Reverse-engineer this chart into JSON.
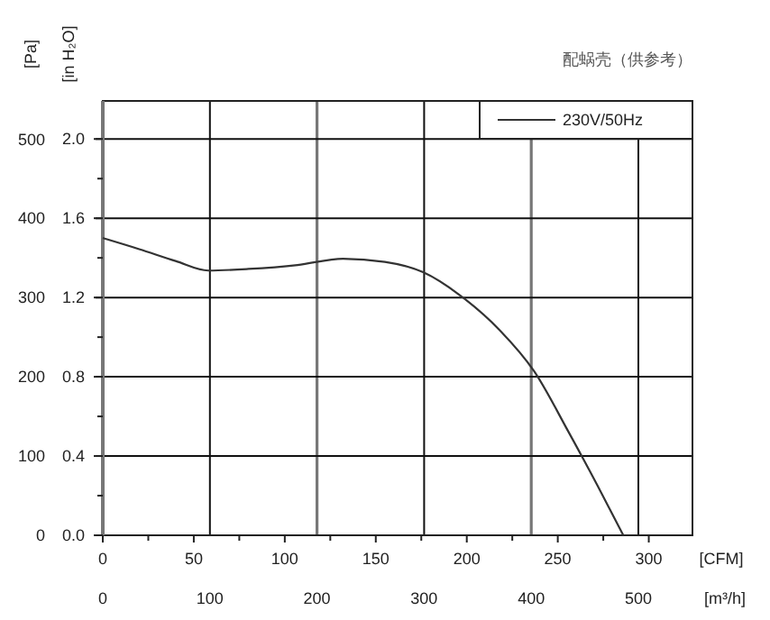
{
  "chart_data": {
    "type": "line",
    "title": "配蜗壳（供参考）",
    "xlabel": "[CFM]",
    "x2label": "[m³/h]",
    "ylabel": "[Pa]",
    "y2label": "[in H₂O]",
    "x": [
      0,
      20,
      40,
      58,
      80,
      107,
      132,
      155,
      176,
      199,
      218,
      237,
      256,
      272,
      286
    ],
    "series": [
      {
        "name": "230V/50Hz",
        "color": "#333333",
        "values": [
          375,
          361,
          346,
          334,
          336,
          341,
          349,
          345,
          332,
          298,
          259,
          207,
          130,
          62,
          0
        ]
      }
    ],
    "xlim": [
      0,
      324
    ],
    "xticks": [
      0,
      {
        "value": 25,
        "label": null
      },
      50,
      {
        "value": 75,
        "label": null
      },
      100,
      {
        "value": 125,
        "label": null
      },
      150,
      {
        "value": 175,
        "label": null
      },
      200,
      {
        "value": 225,
        "label": null
      },
      250,
      {
        "value": 275,
        "label": null
      },
      300
    ],
    "x2lim": [
      0,
      550.5
    ],
    "x2ticks": [
      0,
      100,
      200,
      300,
      400,
      500
    ],
    "ylim": [
      0,
      548
    ],
    "yticks": [
      0,
      {
        "value": 50,
        "label": null
      },
      100,
      {
        "value": 150,
        "label": null
      },
      200,
      {
        "value": 250,
        "label": null
      },
      300,
      {
        "value": 350,
        "label": null
      },
      400,
      {
        "value": 450,
        "label": null
      },
      500
    ],
    "y2lim": [
      0,
      2.19
    ],
    "y2ticks": [
      {
        "value": 0,
        "label": "0.0"
      },
      0.4,
      0.8,
      1.2,
      1.6,
      {
        "value": 2,
        "label": "2.0"
      }
    ],
    "grid": true,
    "legend": "top right",
    "marker": "none",
    "line_style": "solid"
  }
}
